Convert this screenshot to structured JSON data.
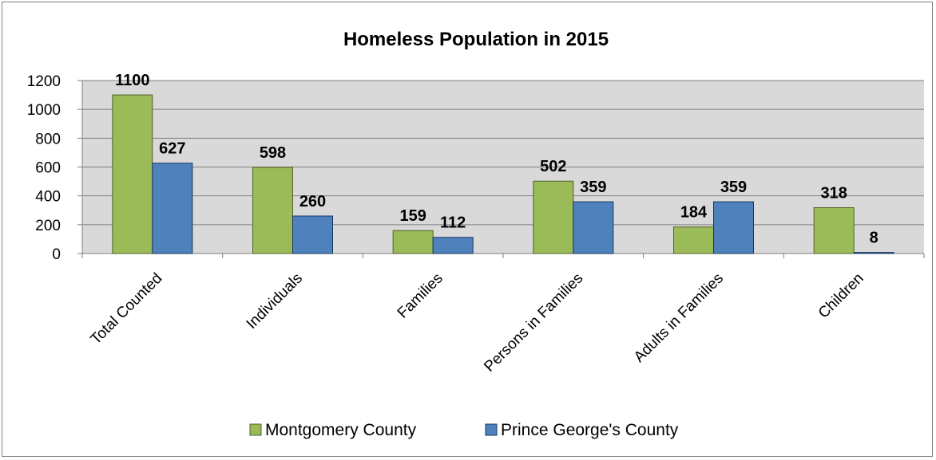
{
  "chart_data": {
    "type": "bar",
    "title": "Homeless Population in 2015",
    "categories": [
      "Total Counted",
      "Individuals",
      "Families",
      "Persons in Families",
      "Adults in Families",
      "Children"
    ],
    "series": [
      {
        "name": "Montgomery County",
        "values": [
          1100,
          598,
          159,
          502,
          184,
          318
        ],
        "color": "#9bbb59",
        "stroke": "#4f6228"
      },
      {
        "name": "Prince George's County",
        "values": [
          627,
          260,
          112,
          359,
          359,
          8
        ],
        "color": "#4f81bd",
        "stroke": "#17375e"
      }
    ],
    "ylim": [
      0,
      1200
    ],
    "yticks": [
      0,
      200,
      400,
      600,
      800,
      1000,
      1200
    ],
    "xlabel": "",
    "ylabel": "",
    "grid": true,
    "plot_background": "#d9d9d9",
    "legend": "bottom"
  }
}
